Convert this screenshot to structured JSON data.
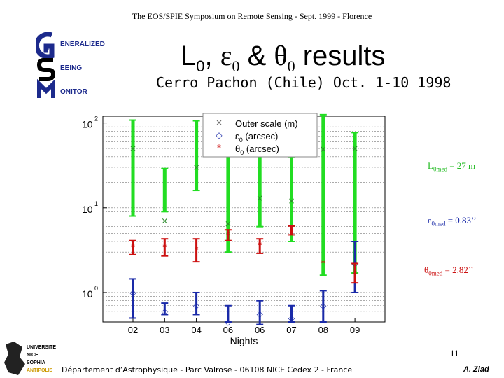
{
  "header": "The EOS/SPIE Symposium on  Remote Sensing - Sept. 1999 - Florence",
  "logo": {
    "line1": "ENERALIZED",
    "line2": "EEING",
    "line3": "ONITOR"
  },
  "title": {
    "prefix": "L",
    "sub0": "0",
    "sep": ",  ",
    "eps": "ε",
    "sub1": "0",
    "amp": " & ",
    "theta": "θ",
    "sub2": "0",
    "suffix": " results"
  },
  "subtitle": "Cerro Pachon (Chile) Oct. 1-10 1998",
  "annotations": {
    "L0": {
      "sym": "L",
      "sub": "0med",
      "val": " = 27 m"
    },
    "eps": {
      "sym": "ε",
      "sub": "0med",
      "val": " = 0.83’’"
    },
    "theta": {
      "sym": "θ",
      "sub": "0med",
      "val": " = 2.82’’"
    }
  },
  "page_number": "11",
  "footer": "Département d’Astrophysique - Parc Valrose - 06108 NICE Cedex 2 - France",
  "author": "A. Ziad",
  "university_logo": [
    "UNIVERSITE",
    "NICE",
    "SOPHIA",
    "ANTIPOLIS"
  ],
  "colors": {
    "outer_scale": "#22dd22",
    "epsilon": "#1a2aa8",
    "theta": "#cc1111"
  },
  "chart_data": {
    "type": "scatter",
    "xlabel": "Nights",
    "categories": [
      "02",
      "03",
      "04",
      "06",
      "06",
      "07",
      "08",
      "09"
    ],
    "y_scale": "log",
    "ylim": [
      0.45,
      120
    ],
    "y_ticks": [
      {
        "value": 1,
        "label": "10",
        "exp": "0"
      },
      {
        "value": 10,
        "label": "10",
        "exp": "1"
      },
      {
        "value": 100,
        "label": "10",
        "exp": "2"
      }
    ],
    "grid": true,
    "legend_placement": "top-center",
    "series": [
      {
        "name": "Outer scale (m)",
        "symbol": "×",
        "color": "#22dd22",
        "values": [
          50,
          7,
          30,
          6.5,
          13,
          12,
          49,
          50
        ],
        "lower": [
          8,
          9,
          16,
          3,
          6,
          4,
          1.6,
          1.7
        ],
        "upper": [
          108,
          29,
          106,
          47,
          52,
          40,
          125,
          77
        ]
      },
      {
        "name": "ε0 (arcsec)",
        "name_main": "ε",
        "name_sub": "0",
        "name_rest": " (arcsec)",
        "symbol": "◇",
        "color": "#1a2aa8",
        "values": [
          1.0,
          0.6,
          0.7,
          0.45,
          0.56,
          0.5,
          0.7,
          2.2
        ],
        "lower": [
          0.5,
          0.55,
          0.55,
          0.45,
          0.42,
          0.45,
          0.45,
          1.0
        ],
        "upper": [
          1.45,
          0.75,
          1.0,
          0.7,
          0.8,
          0.7,
          1.05,
          4.0
        ]
      },
      {
        "name": "θ0 (arcsec)",
        "name_main": "θ",
        "name_sub": "0",
        "name_rest": " (arcsec)",
        "symbol": "*",
        "color": "#cc1111",
        "values": [
          3.4,
          3.4,
          3.2,
          4.8,
          3.6,
          5.4,
          2.2,
          1.65
        ],
        "lower": [
          2.8,
          2.7,
          2.3,
          4.1,
          2.9,
          4.8,
          null,
          1.3
        ],
        "upper": [
          4.1,
          4.3,
          4.3,
          5.5,
          4.3,
          6.1,
          null,
          2.2
        ]
      }
    ]
  }
}
